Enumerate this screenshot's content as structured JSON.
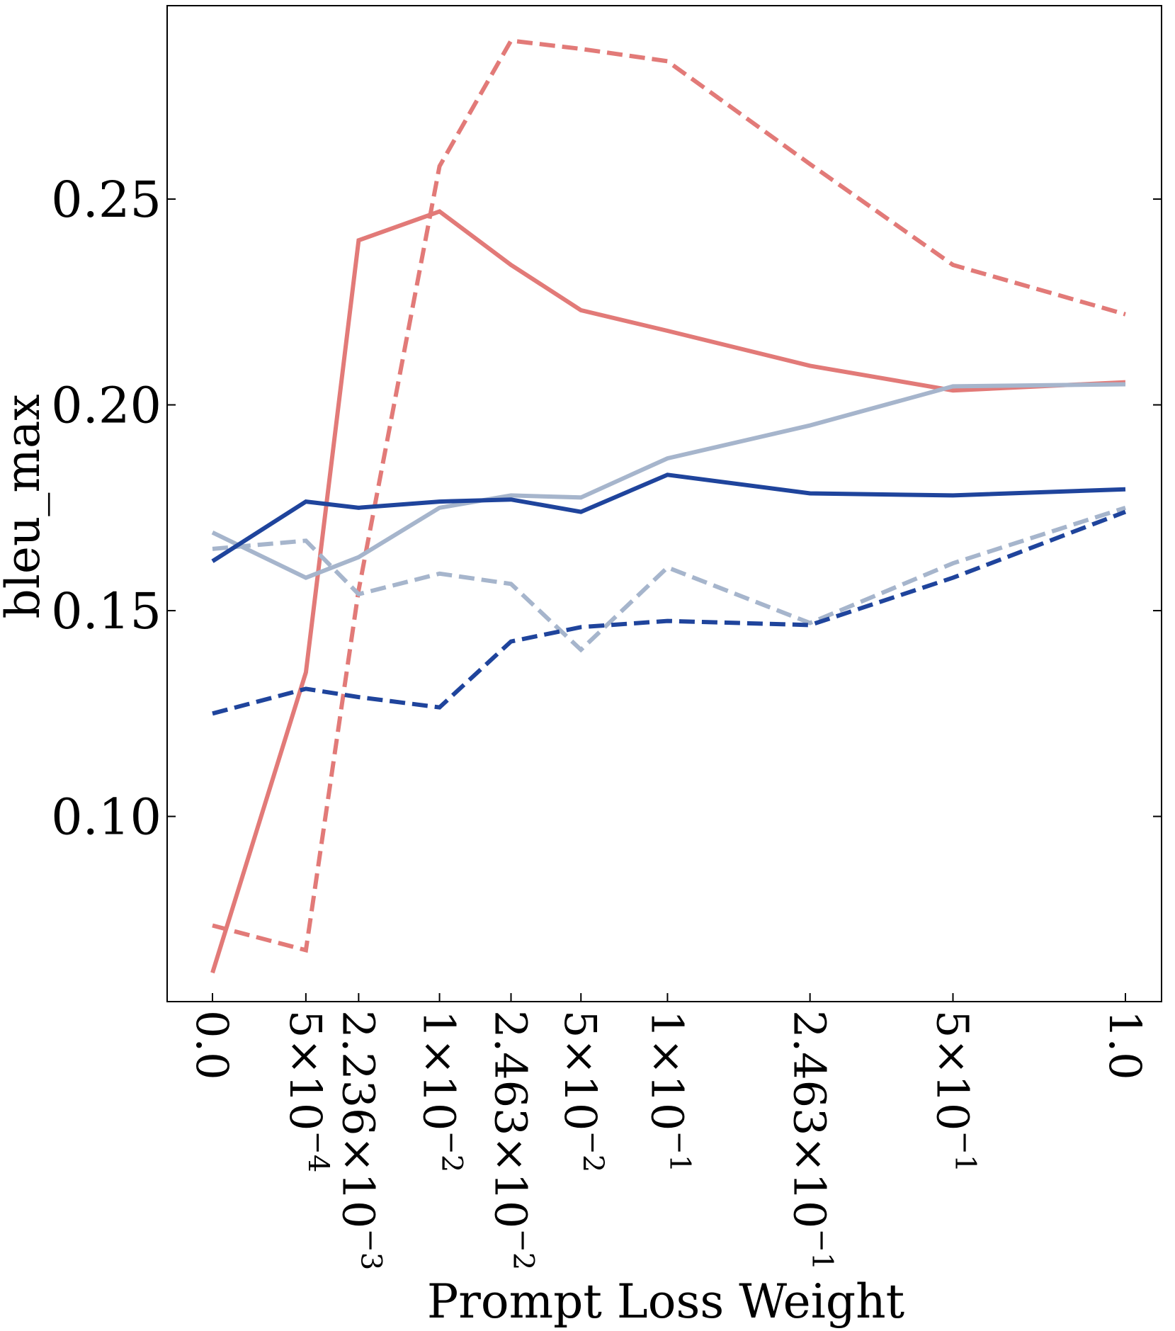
{
  "chart_data": {
    "type": "line",
    "xlabel": "Prompt Loss Weight",
    "ylabel": "bleu_max",
    "ylim": [
      0.055,
      0.297
    ],
    "yticks": [
      0.1,
      0.15,
      0.2,
      0.25
    ],
    "ytick_labels": [
      "0.10",
      "0.15",
      "0.20",
      "0.25"
    ],
    "x_ticks": [
      {
        "value": 0.0,
        "mantissa": "0.0",
        "exponent": ""
      },
      {
        "value": 0.0005,
        "mantissa": "5×10",
        "exponent": "−4"
      },
      {
        "value": 0.002236,
        "mantissa": "2.236×10",
        "exponent": "−3"
      },
      {
        "value": 0.01,
        "mantissa": "1×10",
        "exponent": "−2"
      },
      {
        "value": 0.02463,
        "mantissa": "2.463×10",
        "exponent": "−2"
      },
      {
        "value": 0.05,
        "mantissa": "5×10",
        "exponent": "−2"
      },
      {
        "value": 0.1,
        "mantissa": "1×10",
        "exponent": "−1"
      },
      {
        "value": 0.2463,
        "mantissa": "2.463×10",
        "exponent": "−1"
      },
      {
        "value": 0.5,
        "mantissa": "5×10",
        "exponent": "−1"
      },
      {
        "value": 1.0,
        "mantissa": "1.0",
        "exponent": ""
      }
    ],
    "x_positions": [
      0.0,
      0.1023,
      0.1601,
      0.2487,
      0.327,
      0.4036,
      0.4984,
      0.6545,
      0.8111,
      1.0
    ],
    "grid": false,
    "series": [
      {
        "name": "red-solid",
        "color": "#e27a78",
        "dash": "solid",
        "values": [
          0.062,
          0.135,
          0.24,
          0.247,
          0.234,
          0.223,
          0.218,
          0.2095,
          0.2035,
          0.2055
        ]
      },
      {
        "name": "red-dashed",
        "color": "#e27a78",
        "dash": "dashed",
        "values": [
          0.0735,
          0.0675,
          0.155,
          0.258,
          0.2885,
          0.2865,
          0.2835,
          0.2585,
          0.234,
          0.222
        ]
      },
      {
        "name": "lightblue-solid",
        "color": "#a6b5cc",
        "dash": "solid",
        "values": [
          0.169,
          0.158,
          0.163,
          0.175,
          0.178,
          0.1775,
          0.187,
          0.195,
          0.2045,
          0.205
        ]
      },
      {
        "name": "lightblue-dashed",
        "color": "#a6b5cc",
        "dash": "dashed",
        "values": [
          0.165,
          0.167,
          0.154,
          0.159,
          0.1565,
          0.1405,
          0.1605,
          0.147,
          0.1615,
          0.175
        ]
      },
      {
        "name": "darkblue-solid",
        "color": "#1f449c",
        "dash": "solid",
        "values": [
          0.162,
          0.1765,
          0.175,
          0.1765,
          0.177,
          0.174,
          0.183,
          0.1785,
          0.178,
          0.1795
        ]
      },
      {
        "name": "darkblue-dashed",
        "color": "#1f449c",
        "dash": "dashed",
        "values": [
          0.125,
          0.131,
          0.129,
          0.1265,
          0.1425,
          0.146,
          0.1475,
          0.1465,
          0.158,
          0.174
        ]
      }
    ]
  }
}
